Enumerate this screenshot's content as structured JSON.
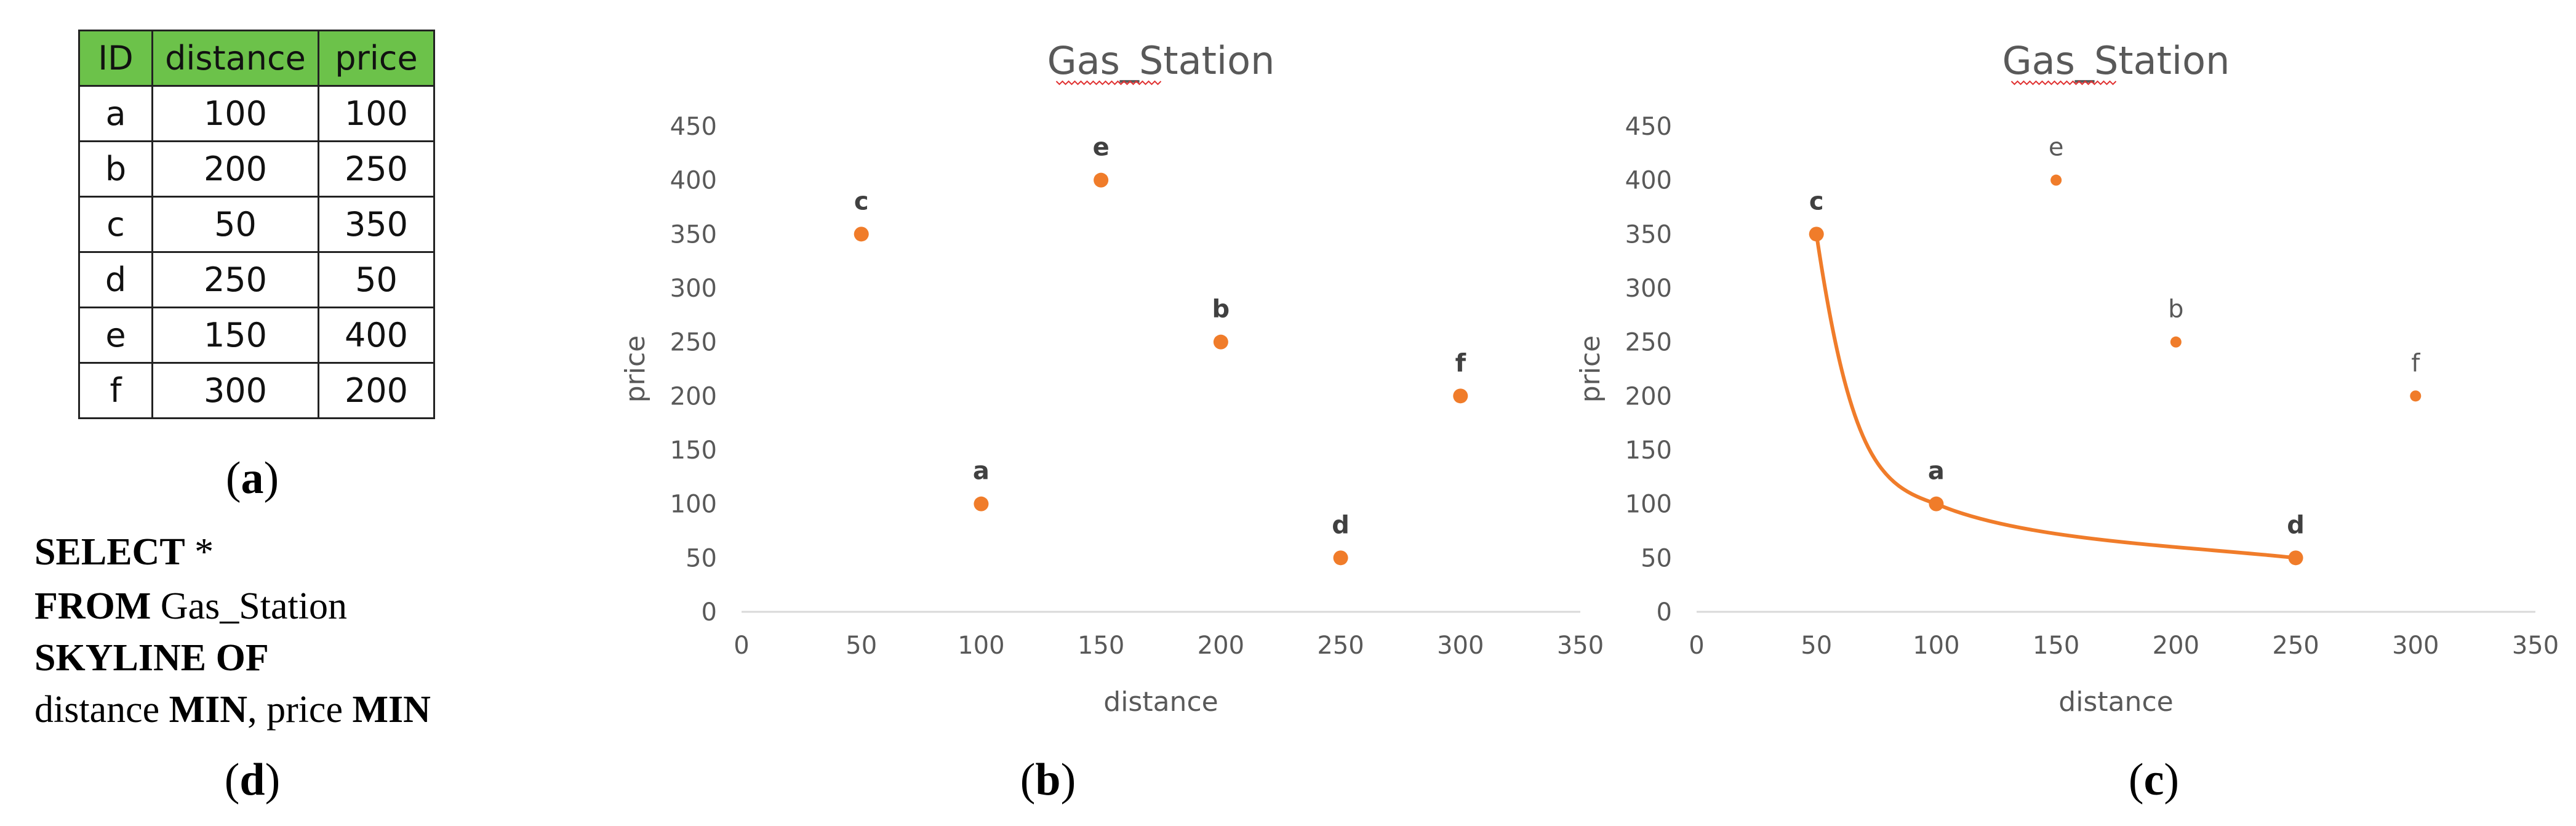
{
  "table": {
    "headers": [
      "ID",
      "distance",
      "price"
    ],
    "rows": [
      [
        "a",
        "100",
        "100"
      ],
      [
        "b",
        "200",
        "250"
      ],
      [
        "c",
        "50",
        "350"
      ],
      [
        "d",
        "250",
        "50"
      ],
      [
        "e",
        "150",
        "400"
      ],
      [
        "f",
        "300",
        "200"
      ]
    ]
  },
  "sql": {
    "line1": {
      "kw": "SELECT",
      "rest": " *"
    },
    "line2": {
      "kw": "FROM",
      "rest": " Gas_Station"
    },
    "line3": {
      "kw": "SKYLINE OF",
      "rest": ""
    },
    "line4": {
      "a": "distance ",
      "kw1": "MIN",
      "b": ", price ",
      "kw2": "MIN"
    }
  },
  "captions": {
    "a": "a",
    "b": "b",
    "c": "c",
    "d": "d"
  },
  "colors": {
    "point": "#f07c2a",
    "axis": "#d9d9d9",
    "text": "#595959",
    "header_bg": "#6cc24a"
  },
  "chart_data": [
    {
      "type": "scatter",
      "title": "Gas_Station",
      "xlabel": "distance",
      "ylabel": "price",
      "xlim": [
        0,
        350
      ],
      "ylim": [
        0,
        450
      ],
      "xticks": [
        0,
        50,
        100,
        150,
        200,
        250,
        300,
        350
      ],
      "yticks": [
        0,
        50,
        100,
        150,
        200,
        250,
        300,
        350,
        400,
        450
      ],
      "grid": false,
      "points": [
        {
          "label": "a",
          "x": 100,
          "y": 100
        },
        {
          "label": "b",
          "x": 200,
          "y": 250
        },
        {
          "label": "c",
          "x": 50,
          "y": 350
        },
        {
          "label": "d",
          "x": 250,
          "y": 50
        },
        {
          "label": "e",
          "x": 150,
          "y": 400
        },
        {
          "label": "f",
          "x": 300,
          "y": 200
        }
      ]
    },
    {
      "type": "scatter",
      "title": "Gas_Station",
      "xlabel": "distance",
      "ylabel": "price",
      "xlim": [
        0,
        350
      ],
      "ylim": [
        0,
        450
      ],
      "xticks": [
        0,
        50,
        100,
        150,
        200,
        250,
        300,
        350
      ],
      "yticks": [
        0,
        50,
        100,
        150,
        200,
        250,
        300,
        350,
        400,
        450
      ],
      "grid": false,
      "points": [
        {
          "label": "a",
          "x": 100,
          "y": 100,
          "skyline": true
        },
        {
          "label": "b",
          "x": 200,
          "y": 250,
          "skyline": false
        },
        {
          "label": "c",
          "x": 50,
          "y": 350,
          "skyline": true
        },
        {
          "label": "d",
          "x": 250,
          "y": 50,
          "skyline": true
        },
        {
          "label": "e",
          "x": 150,
          "y": 400,
          "skyline": false
        },
        {
          "label": "f",
          "x": 300,
          "y": 200,
          "skyline": false
        }
      ],
      "skyline_curve": [
        "c",
        "a",
        "d"
      ]
    }
  ]
}
